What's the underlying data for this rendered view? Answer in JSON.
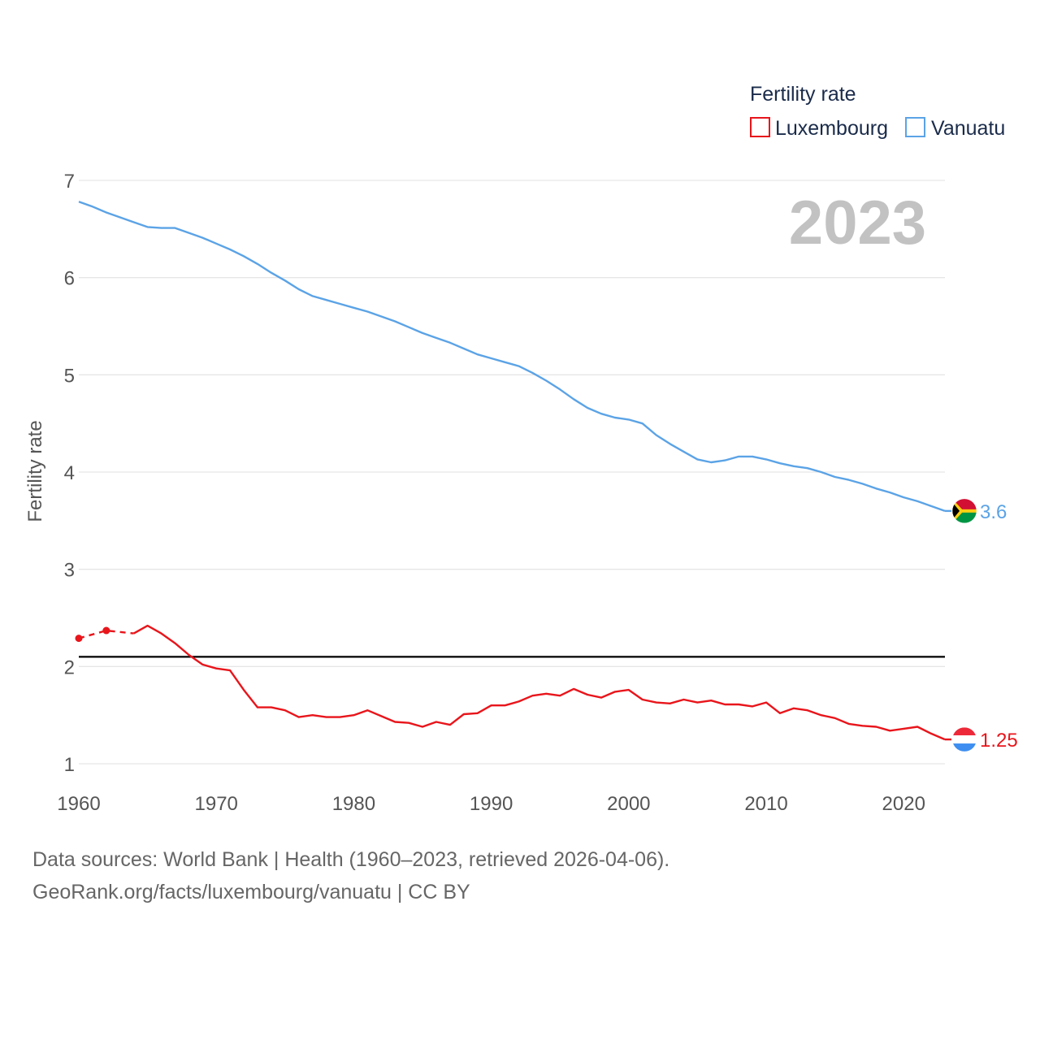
{
  "chart_data": {
    "type": "line",
    "title": "",
    "xlabel": "",
    "ylabel": "Fertility rate",
    "xlim": [
      1960,
      2023
    ],
    "ylim": [
      1,
      7
    ],
    "x_ticks": [
      "1960",
      "1970",
      "1980",
      "1990",
      "2000",
      "2010",
      "2020"
    ],
    "y_ticks": [
      "1",
      "2",
      "3",
      "4",
      "5",
      "6",
      "7"
    ],
    "year_display": "2023",
    "legend": {
      "title": "Fertility rate",
      "position": "top-right"
    },
    "reference_line": {
      "value": 2.1,
      "color": "#000000"
    },
    "series": [
      {
        "name": "Luxembourg",
        "color": "#e8151b",
        "end_label": "1.25",
        "flag_colors": [
          "#ed2939",
          "#ffffff",
          "#3d8ef0"
        ],
        "dashed_points": [
          [
            1960,
            2.29
          ],
          [
            1962,
            2.37
          ],
          [
            1964,
            2.34
          ]
        ],
        "points": [
          [
            1964,
            2.34
          ],
          [
            1965,
            2.42
          ],
          [
            1966,
            2.34
          ],
          [
            1967,
            2.24
          ],
          [
            1968,
            2.12
          ],
          [
            1969,
            2.02
          ],
          [
            1970,
            1.98
          ],
          [
            1971,
            1.96
          ],
          [
            1972,
            1.76
          ],
          [
            1973,
            1.58
          ],
          [
            1974,
            1.58
          ],
          [
            1975,
            1.55
          ],
          [
            1976,
            1.48
          ],
          [
            1977,
            1.5
          ],
          [
            1978,
            1.48
          ],
          [
            1979,
            1.48
          ],
          [
            1980,
            1.5
          ],
          [
            1981,
            1.55
          ],
          [
            1982,
            1.49
          ],
          [
            1983,
            1.43
          ],
          [
            1984,
            1.42
          ],
          [
            1985,
            1.38
          ],
          [
            1986,
            1.43
          ],
          [
            1987,
            1.4
          ],
          [
            1988,
            1.51
          ],
          [
            1989,
            1.52
          ],
          [
            1990,
            1.6
          ],
          [
            1991,
            1.6
          ],
          [
            1992,
            1.64
          ],
          [
            1993,
            1.7
          ],
          [
            1994,
            1.72
          ],
          [
            1995,
            1.7
          ],
          [
            1996,
            1.77
          ],
          [
            1997,
            1.71
          ],
          [
            1998,
            1.68
          ],
          [
            1999,
            1.74
          ],
          [
            2000,
            1.76
          ],
          [
            2001,
            1.66
          ],
          [
            2002,
            1.63
          ],
          [
            2003,
            1.62
          ],
          [
            2004,
            1.66
          ],
          [
            2005,
            1.63
          ],
          [
            2006,
            1.65
          ],
          [
            2007,
            1.61
          ],
          [
            2008,
            1.61
          ],
          [
            2009,
            1.59
          ],
          [
            2010,
            1.63
          ],
          [
            2011,
            1.52
          ],
          [
            2012,
            1.57
          ],
          [
            2013,
            1.55
          ],
          [
            2014,
            1.5
          ],
          [
            2015,
            1.47
          ],
          [
            2016,
            1.41
          ],
          [
            2017,
            1.39
          ],
          [
            2018,
            1.38
          ],
          [
            2019,
            1.34
          ],
          [
            2020,
            1.36
          ],
          [
            2021,
            1.38
          ],
          [
            2022,
            1.31
          ],
          [
            2023,
            1.25
          ]
        ]
      },
      {
        "name": "Vanuatu",
        "color": "#5ba3e6",
        "end_label": "3.6",
        "flag_colors": [
          "#d21034",
          "#009543",
          "#000000",
          "#fdce12"
        ],
        "points": [
          [
            1960,
            6.78
          ],
          [
            1961,
            6.73
          ],
          [
            1962,
            6.67
          ],
          [
            1963,
            6.62
          ],
          [
            1964,
            6.57
          ],
          [
            1965,
            6.52
          ],
          [
            1966,
            6.51
          ],
          [
            1967,
            6.51
          ],
          [
            1968,
            6.46
          ],
          [
            1969,
            6.41
          ],
          [
            1970,
            6.35
          ],
          [
            1971,
            6.29
          ],
          [
            1972,
            6.22
          ],
          [
            1973,
            6.14
          ],
          [
            1974,
            6.05
          ],
          [
            1975,
            5.97
          ],
          [
            1976,
            5.88
          ],
          [
            1977,
            5.81
          ],
          [
            1978,
            5.77
          ],
          [
            1979,
            5.73
          ],
          [
            1980,
            5.69
          ],
          [
            1981,
            5.65
          ],
          [
            1982,
            5.6
          ],
          [
            1983,
            5.55
          ],
          [
            1984,
            5.49
          ],
          [
            1985,
            5.43
          ],
          [
            1986,
            5.38
          ],
          [
            1987,
            5.33
          ],
          [
            1988,
            5.27
          ],
          [
            1989,
            5.21
          ],
          [
            1990,
            5.17
          ],
          [
            1991,
            5.13
          ],
          [
            1992,
            5.09
          ],
          [
            1993,
            5.02
          ],
          [
            1994,
            4.94
          ],
          [
            1995,
            4.85
          ],
          [
            1996,
            4.75
          ],
          [
            1997,
            4.66
          ],
          [
            1998,
            4.6
          ],
          [
            1999,
            4.56
          ],
          [
            2000,
            4.54
          ],
          [
            2001,
            4.5
          ],
          [
            2002,
            4.38
          ],
          [
            2003,
            4.29
          ],
          [
            2004,
            4.21
          ],
          [
            2005,
            4.13
          ],
          [
            2006,
            4.1
          ],
          [
            2007,
            4.12
          ],
          [
            2008,
            4.16
          ],
          [
            2009,
            4.16
          ],
          [
            2010,
            4.13
          ],
          [
            2011,
            4.09
          ],
          [
            2012,
            4.06
          ],
          [
            2013,
            4.04
          ],
          [
            2014,
            4.0
          ],
          [
            2015,
            3.95
          ],
          [
            2016,
            3.92
          ],
          [
            2017,
            3.88
          ],
          [
            2018,
            3.83
          ],
          [
            2019,
            3.79
          ],
          [
            2020,
            3.74
          ],
          [
            2021,
            3.7
          ],
          [
            2022,
            3.65
          ],
          [
            2023,
            3.6
          ]
        ]
      }
    ]
  },
  "footer": {
    "line1": "Data sources: World Bank | Health (1960–2023, retrieved 2026-04-06).",
    "line2": "GeoRank.org/facts/luxembourg/vanuatu | CC BY"
  }
}
